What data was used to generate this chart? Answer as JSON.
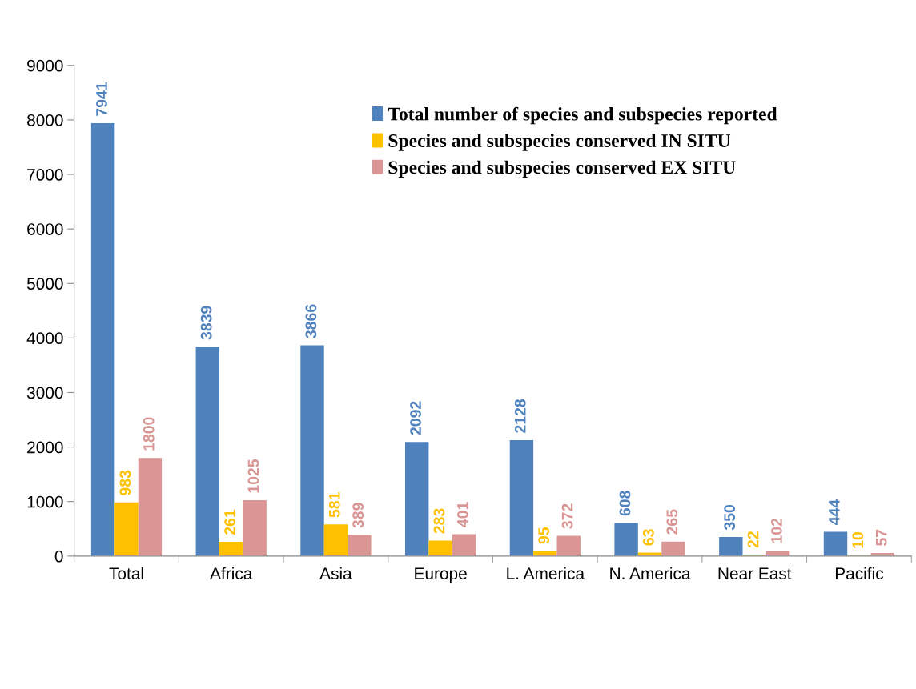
{
  "chart_data": {
    "type": "bar",
    "categories": [
      "Total",
      "Africa",
      "Asia",
      "Europe",
      "L. America",
      "N. America",
      "Near East",
      "Pacific"
    ],
    "series": [
      {
        "name": "Total number of species and subspecies reported",
        "color": "#4f81bd",
        "values": [
          7941,
          3839,
          3866,
          2092,
          2128,
          608,
          350,
          444
        ]
      },
      {
        "name": "Species and subspecies conserved IN SITU",
        "color": "#ffc000",
        "values": [
          983,
          261,
          581,
          283,
          95,
          63,
          22,
          10
        ]
      },
      {
        "name": "Species and subspecies conserved EX SITU",
        "color": "#d99694",
        "values": [
          1800,
          1025,
          389,
          401,
          372,
          265,
          102,
          57
        ]
      }
    ],
    "ylim": [
      0,
      9000
    ],
    "yticks": [
      0,
      1000,
      2000,
      3000,
      4000,
      5000,
      6000,
      7000,
      8000,
      9000
    ],
    "data_labels": true,
    "grid": false,
    "legend": "top right"
  }
}
